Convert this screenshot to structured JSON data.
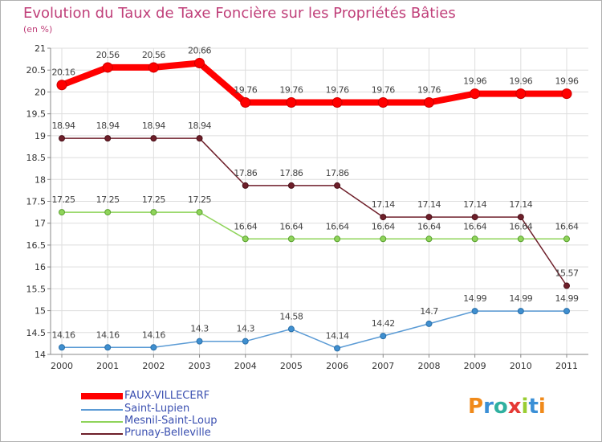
{
  "chart_data": {
    "type": "line",
    "title": "Evolution du Taux de Taxe Foncière sur les Propriétés Bâties",
    "subtitle": "(en %)",
    "xlabel": "",
    "ylabel": "",
    "x": [
      "2000",
      "2001",
      "2002",
      "2003",
      "2004",
      "2005",
      "2006",
      "2007",
      "2008",
      "2009",
      "2010",
      "2011"
    ],
    "ylim": [
      14,
      21
    ],
    "yticks": [
      "14",
      "14.5",
      "15",
      "15.5",
      "16",
      "16.5",
      "17",
      "17.5",
      "18",
      "18.5",
      "19",
      "19.5",
      "20",
      "20.5",
      "21"
    ],
    "grid": true,
    "legend_position": "bottom-left",
    "series": [
      {
        "name": "FAUX-VILLECERF",
        "color": "#ff0000",
        "values": [
          20.16,
          20.56,
          20.56,
          20.66,
          19.76,
          19.76,
          19.76,
          19.76,
          19.76,
          19.96,
          19.96,
          19.96
        ],
        "labels": [
          "20.16",
          "20.56",
          "20.56",
          "20.66",
          "19.76",
          "19.76",
          "19.76",
          "19.76",
          "19.76",
          "19.96",
          "19.96",
          "19.96"
        ]
      },
      {
        "name": "Saint-Lupien",
        "color": "#5b9bd5",
        "values": [
          14.16,
          14.16,
          14.16,
          14.3,
          14.3,
          14.58,
          14.14,
          14.42,
          14.7,
          14.99,
          14.99,
          14.99
        ],
        "labels": [
          "14.16",
          "14.16",
          "14.16",
          "14.3",
          "14.3",
          "14.58",
          "14.14",
          "14.42",
          "14.7",
          "14.99",
          "14.99",
          "14.99"
        ]
      },
      {
        "name": "Mesnil-Saint-Loup",
        "color": "#8fd45a",
        "values": [
          17.25,
          17.25,
          17.25,
          17.25,
          16.64,
          16.64,
          16.64,
          16.64,
          16.64,
          16.64,
          16.64,
          16.64
        ],
        "labels": [
          "17.25",
          "17.25",
          "17.25",
          "17.25",
          "16.64",
          "16.64",
          "16.64",
          "16.64",
          "16.64",
          "16.64",
          "16.64",
          "16.64"
        ]
      },
      {
        "name": "Prunay-Belleville",
        "color": "#6e1f2a",
        "values": [
          18.94,
          18.94,
          18.94,
          18.94,
          17.86,
          17.86,
          17.86,
          17.14,
          17.14,
          17.14,
          17.14,
          15.57
        ],
        "labels": [
          "18.94",
          "18.94",
          "18.94",
          "18.94",
          "17.86",
          "17.86",
          "17.86",
          "17.14",
          "17.14",
          "17.14",
          "17.14",
          "15.57"
        ]
      }
    ]
  },
  "logo": {
    "text": "Proxiti"
  }
}
